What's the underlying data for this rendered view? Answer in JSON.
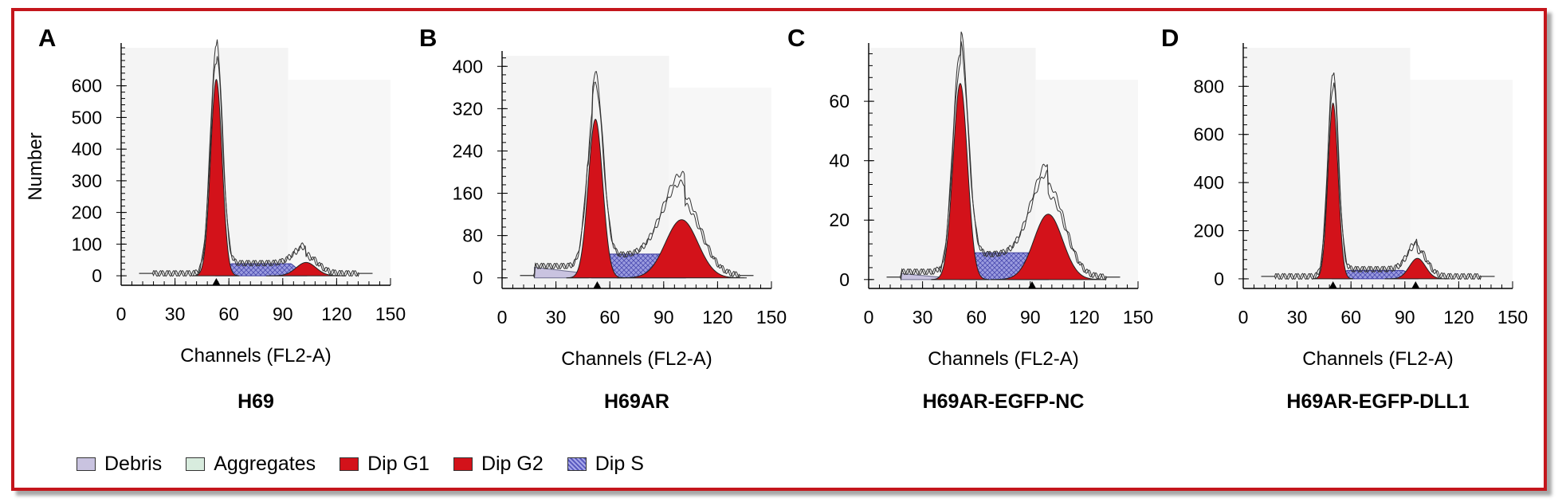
{
  "legend": [
    {
      "label": "Debris",
      "color": "#c9c3e0",
      "pattern": "solid"
    },
    {
      "label": "Aggregates",
      "color": "#d8ecde",
      "pattern": "solid"
    },
    {
      "label": "Dip G1",
      "color": "#d3121a",
      "pattern": "solid"
    },
    {
      "label": "Dip G2",
      "color": "#d3121a",
      "pattern": "solid"
    },
    {
      "label": "Dip S",
      "color": "#6f6fd0",
      "pattern": "hatched"
    }
  ],
  "colors": {
    "g1": "#d3121a",
    "g2": "#d3121a",
    "s": "#7d7ed8",
    "debris": "#c9c3e0",
    "frame": "#c4161c"
  },
  "chart_data": [
    {
      "panel": "A",
      "title": "H69",
      "type": "area",
      "xlabel": "Channels (FL2-A)",
      "ylabel": "Number",
      "xlim": [
        0,
        150
      ],
      "ylim": [
        -30,
        720
      ],
      "xticks": [
        0,
        30,
        60,
        90,
        120,
        150
      ],
      "yticks": [
        0,
        100,
        200,
        300,
        400,
        500,
        600
      ],
      "series": [
        {
          "name": "Dip G1",
          "values": {
            "center": 53,
            "sigma": 3.2,
            "height": 620
          }
        },
        {
          "name": "Dip G2",
          "values": {
            "center": 103,
            "sigma": 5.5,
            "height": 42
          }
        },
        {
          "name": "Dip S",
          "values": {
            "start": 53,
            "end": 103,
            "level": 38
          }
        }
      ],
      "markers": [
        53
      ]
    },
    {
      "panel": "B",
      "title": "H69AR",
      "type": "area",
      "xlabel": "Channels (FL2-A)",
      "ylabel": "",
      "xlim": [
        0,
        150
      ],
      "ylim": [
        -20,
        420
      ],
      "xticks": [
        0,
        30,
        60,
        90,
        120,
        150
      ],
      "yticks": [
        0,
        80,
        160,
        240,
        320,
        400
      ],
      "series": [
        {
          "name": "Dip G1",
          "values": {
            "center": 52,
            "sigma": 4,
            "height": 300
          }
        },
        {
          "name": "Dip G2",
          "values": {
            "center": 100,
            "sigma": 9,
            "height": 110
          }
        },
        {
          "name": "Dip S",
          "values": {
            "start": 50,
            "end": 102,
            "level": 45
          }
        },
        {
          "name": "Debris",
          "values": {
            "start": 18,
            "end": 48,
            "level": 20
          }
        }
      ],
      "markers": [
        53
      ]
    },
    {
      "panel": "C",
      "title": "H69AR-EGFP-NC",
      "type": "area",
      "xlabel": "Channels (FL2-A)",
      "ylabel": "",
      "xlim": [
        0,
        150
      ],
      "ylim": [
        -3,
        78
      ],
      "xticks": [
        0,
        30,
        60,
        90,
        120,
        150
      ],
      "yticks": [
        0,
        20,
        40,
        60
      ],
      "series": [
        {
          "name": "Dip G1",
          "values": {
            "center": 51,
            "sigma": 4,
            "height": 66
          }
        },
        {
          "name": "Dip G2",
          "values": {
            "center": 100,
            "sigma": 8,
            "height": 22
          }
        },
        {
          "name": "Dip S",
          "values": {
            "start": 51,
            "end": 100,
            "level": 9
          }
        },
        {
          "name": "Debris",
          "values": {
            "start": 18,
            "end": 40,
            "level": 2
          }
        }
      ],
      "markers": [
        91
      ]
    },
    {
      "panel": "D",
      "title": "H69AR-EGFP-DLL1",
      "type": "area",
      "xlabel": "Channels (FL2-A)",
      "ylabel": "",
      "xlim": [
        0,
        150
      ],
      "ylim": [
        -40,
        960
      ],
      "xticks": [
        0,
        30,
        60,
        90,
        120,
        150
      ],
      "yticks": [
        0,
        200,
        400,
        600,
        800
      ],
      "series": [
        {
          "name": "Dip G1",
          "values": {
            "center": 50,
            "sigma": 2.8,
            "height": 730
          }
        },
        {
          "name": "Dip G2",
          "values": {
            "center": 97,
            "sigma": 4.5,
            "height": 85
          }
        },
        {
          "name": "Dip S",
          "values": {
            "start": 50,
            "end": 97,
            "level": 35
          }
        }
      ],
      "markers": [
        50,
        96
      ]
    }
  ]
}
